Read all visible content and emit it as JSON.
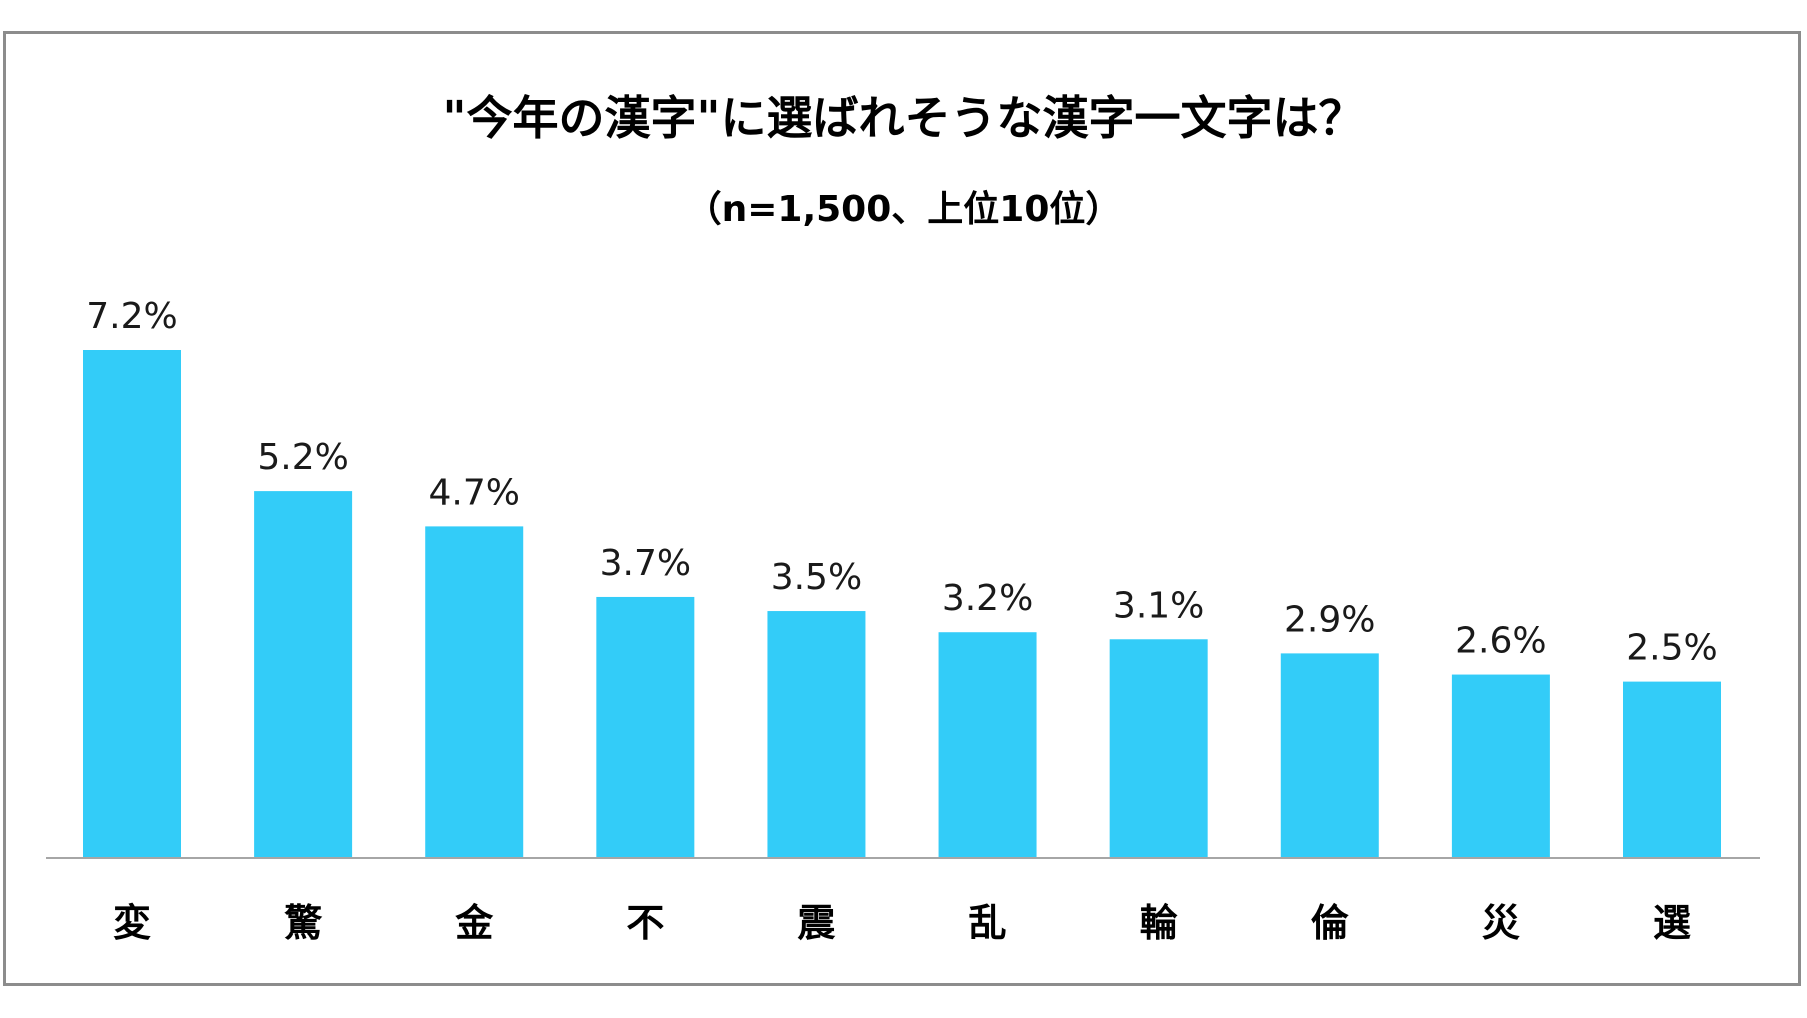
{
  "chart_data": {
    "type": "bar",
    "title": "\"今年の漢字\"に選ばれそうな漢字一文字は？",
    "subtitle": "（n=1,500、上位10位）",
    "categories": [
      "変",
      "驚",
      "金",
      "不",
      "震",
      "乱",
      "輪",
      "倫",
      "災",
      "選"
    ],
    "values": [
      7.2,
      5.2,
      4.7,
      3.7,
      3.5,
      3.2,
      3.1,
      2.9,
      2.6,
      2.5
    ],
    "value_labels": [
      "7.2%",
      "5.2%",
      "4.7%",
      "3.7%",
      "3.5%",
      "3.2%",
      "3.1%",
      "2.9%",
      "2.6%",
      "2.5%"
    ],
    "xlabel": "",
    "ylabel": "",
    "ylim": [
      0,
      7.2
    ],
    "grid": false,
    "legend": "none",
    "bar_color": "#33ccf8",
    "axis_color": "#a6a6a6"
  }
}
